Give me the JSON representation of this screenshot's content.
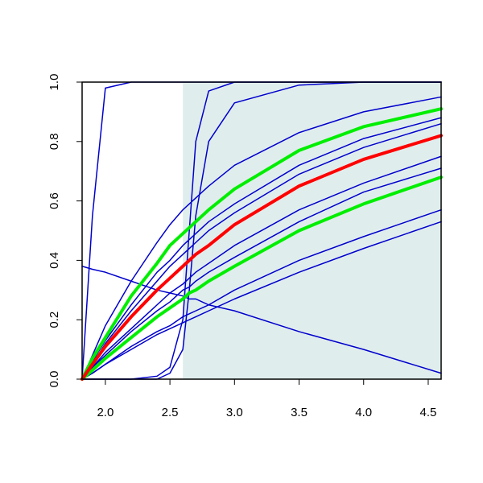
{
  "chart_data": {
    "type": "line",
    "x": [
      1.82,
      1.9,
      2.0,
      2.2,
      2.4,
      2.5,
      2.6,
      2.65,
      2.7,
      2.8,
      3.0,
      3.5,
      4.0,
      4.6
    ],
    "series": [
      {
        "color": "#0000cc",
        "lwd": 1.5,
        "values": [
          0,
          0.55,
          0.98,
          1,
          1,
          1,
          1,
          1,
          1,
          1,
          1,
          1,
          1,
          1
        ]
      },
      {
        "color": "#0000cc",
        "lwd": 1.5,
        "values": [
          0,
          0,
          0,
          0,
          0.01,
          0.04,
          0.2,
          0.5,
          0.8,
          0.97,
          1,
          1,
          1,
          1
        ]
      },
      {
        "color": "#0000cc",
        "lwd": 1.5,
        "values": [
          0,
          0,
          0,
          0,
          0,
          0.02,
          0.1,
          0.3,
          0.55,
          0.8,
          0.93,
          0.99,
          1,
          1
        ]
      },
      {
        "color": "#0000cc",
        "lwd": 1.5,
        "values": [
          0.38,
          0.37,
          0.36,
          0.33,
          0.3,
          0.29,
          0.28,
          0.27,
          0.27,
          0.25,
          0.23,
          0.16,
          0.1,
          0.02
        ]
      },
      {
        "color": "#0000cc",
        "lwd": 1.5,
        "values": [
          0,
          0.08,
          0.18,
          0.33,
          0.46,
          0.52,
          0.57,
          0.59,
          0.61,
          0.65,
          0.72,
          0.83,
          0.9,
          0.95
        ]
      },
      {
        "color": "#0000cc",
        "lwd": 1.5,
        "values": [
          0,
          0.06,
          0.13,
          0.25,
          0.36,
          0.4,
          0.45,
          0.47,
          0.49,
          0.53,
          0.59,
          0.72,
          0.81,
          0.88
        ]
      },
      {
        "color": "#0000cc",
        "lwd": 1.5,
        "values": [
          0,
          0.05,
          0.12,
          0.23,
          0.33,
          0.38,
          0.42,
          0.44,
          0.46,
          0.5,
          0.56,
          0.69,
          0.78,
          0.86
        ]
      },
      {
        "color": "#0000cc",
        "lwd": 1.5,
        "values": [
          0,
          0.04,
          0.09,
          0.17,
          0.25,
          0.29,
          0.32,
          0.34,
          0.36,
          0.39,
          0.45,
          0.57,
          0.66,
          0.75
        ]
      },
      {
        "color": "#0000cc",
        "lwd": 1.5,
        "values": [
          0,
          0.04,
          0.08,
          0.16,
          0.23,
          0.26,
          0.3,
          0.31,
          0.33,
          0.36,
          0.41,
          0.53,
          0.63,
          0.71
        ]
      },
      {
        "color": "#0000cc",
        "lwd": 1.5,
        "values": [
          0,
          0.02,
          0.05,
          0.11,
          0.16,
          0.18,
          0.21,
          0.22,
          0.23,
          0.25,
          0.3,
          0.4,
          0.48,
          0.57
        ]
      },
      {
        "color": "#0000cc",
        "lwd": 1.5,
        "values": [
          0,
          0.02,
          0.05,
          0.1,
          0.15,
          0.17,
          0.19,
          0.2,
          0.21,
          0.23,
          0.27,
          0.36,
          0.44,
          0.53
        ]
      },
      {
        "color": "#00ee00",
        "lwd": 4,
        "values": [
          0,
          0.07,
          0.14,
          0.28,
          0.39,
          0.45,
          0.49,
          0.51,
          0.53,
          0.57,
          0.64,
          0.77,
          0.85,
          0.91
        ]
      },
      {
        "color": "#00ee00",
        "lwd": 4,
        "values": [
          0,
          0.03,
          0.07,
          0.14,
          0.21,
          0.24,
          0.27,
          0.29,
          0.3,
          0.33,
          0.38,
          0.5,
          0.59,
          0.68
        ]
      },
      {
        "color": "#ff0000",
        "lwd": 4,
        "values": [
          0,
          0.05,
          0.11,
          0.21,
          0.3,
          0.34,
          0.38,
          0.4,
          0.42,
          0.45,
          0.52,
          0.65,
          0.74,
          0.82
        ]
      }
    ],
    "shade": {
      "xlim": [
        2.6,
        4.6
      ],
      "color": "#e0eded"
    },
    "xlim": [
      1.82,
      4.6
    ],
    "ylim": [
      0,
      1
    ],
    "xticks": [
      {
        "value": 2,
        "label": "2.0"
      },
      {
        "value": 2.5,
        "label": "2.5"
      },
      {
        "value": 3,
        "label": "3.0"
      },
      {
        "value": 3.5,
        "label": "3.5"
      },
      {
        "value": 4,
        "label": "4.0"
      },
      {
        "value": 4.5,
        "label": "4.5"
      }
    ],
    "yticks": [
      {
        "value": 0,
        "label": "0.0"
      },
      {
        "value": 0.2,
        "label": "0.2"
      },
      {
        "value": 0.4,
        "label": "0.4"
      },
      {
        "value": 0.6,
        "label": "0.6"
      },
      {
        "value": 0.8,
        "label": "0.8"
      },
      {
        "value": 1,
        "label": "1.0"
      }
    ]
  }
}
